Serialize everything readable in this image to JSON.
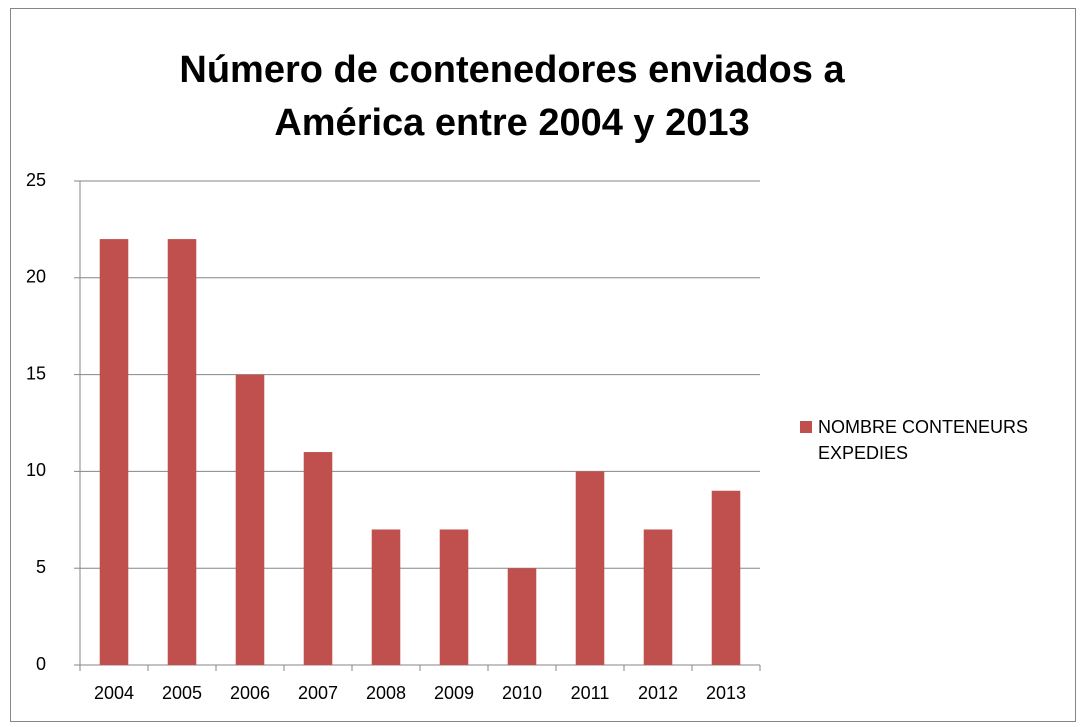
{
  "chart_data": {
    "type": "bar",
    "title": "Número de contenedores enviados a América entre 2004 y 2013",
    "categories": [
      "2004",
      "2005",
      "2006",
      "2007",
      "2008",
      "2009",
      "2010",
      "2011",
      "2012",
      "2013"
    ],
    "series": [
      {
        "name": "NOMBRE CONTENEURS EXPEDIES",
        "color": "#c0504d",
        "values": [
          22,
          22,
          15,
          11,
          7,
          7,
          5,
          10,
          7,
          9
        ]
      }
    ],
    "ylim": [
      0,
      25
    ],
    "yticks": [
      0,
      5,
      10,
      15,
      20,
      25
    ],
    "grid": true,
    "legend": "right"
  }
}
